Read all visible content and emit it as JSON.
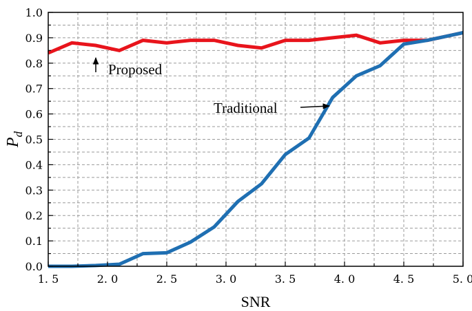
{
  "chart_data": {
    "type": "line",
    "title": "",
    "xlabel": "SNR",
    "ylabel_symbol": "P",
    "ylabel_subscript": "d",
    "xlim": [
      1.5,
      5.0
    ],
    "ylim": [
      0.0,
      1.0
    ],
    "xticks": [
      "1. 5",
      "2. 0",
      "2. 5",
      "3. 0",
      "3. 5",
      "4. 0",
      "4. 5",
      "5. 0"
    ],
    "yticks": [
      "0.0",
      "0.1",
      "0.2",
      "0.3",
      "0.4",
      "0.5",
      "0.6",
      "0.7",
      "0.8",
      "0.9",
      "1.0"
    ],
    "grid": true,
    "x": [
      1.5,
      1.7,
      1.9,
      2.1,
      2.3,
      2.5,
      2.7,
      2.9,
      3.1,
      3.3,
      3.5,
      3.7,
      3.9,
      4.1,
      4.3,
      4.5,
      4.7,
      4.9,
      5.0
    ],
    "series": [
      {
        "name": "Proposed",
        "color": "#e8141c",
        "values": [
          0.84,
          0.88,
          0.87,
          0.85,
          0.89,
          0.88,
          0.89,
          0.89,
          0.87,
          0.86,
          0.89,
          0.89,
          0.9,
          0.91,
          0.88,
          0.89,
          0.89,
          0.91,
          0.92
        ]
      },
      {
        "name": "Traditional",
        "color": "#1f6fb2",
        "values": [
          0.0,
          0.0,
          0.003,
          0.008,
          0.05,
          0.053,
          0.095,
          0.155,
          0.255,
          0.325,
          0.44,
          0.505,
          0.665,
          0.75,
          0.79,
          0.875,
          0.89,
          0.91,
          0.92
        ]
      }
    ],
    "annotations": [
      {
        "text": "Proposed",
        "series": "Proposed",
        "arrow": "up"
      },
      {
        "text": "Traditional",
        "series": "Traditional",
        "arrow": "right"
      }
    ]
  }
}
